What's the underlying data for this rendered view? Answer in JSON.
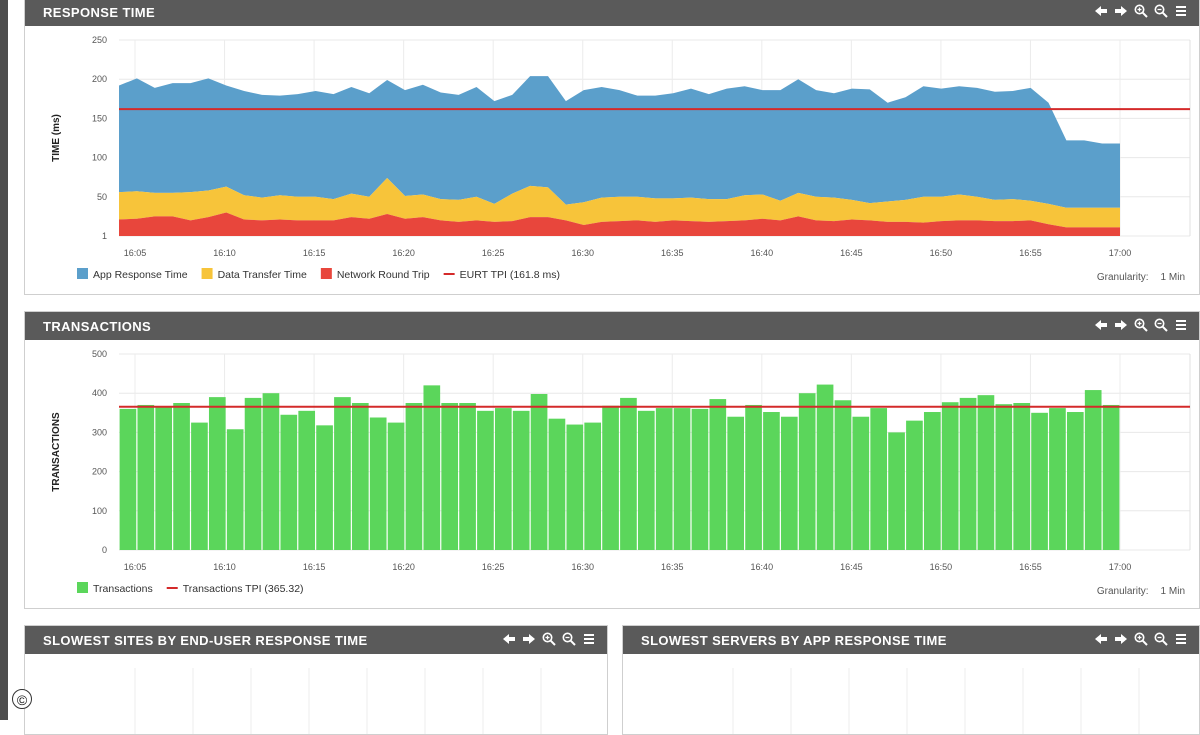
{
  "panels": {
    "response_time": {
      "title": "RESPONSE TIME"
    },
    "transactions": {
      "title": "TRANSACTIONS"
    },
    "slowest_sites": {
      "title": "SLOWEST SITES BY END-USER RESPONSE TIME"
    },
    "slowest_servers": {
      "title": "SLOWEST SERVERS BY APP RESPONSE TIME"
    }
  },
  "tool_icons": [
    "arrow-left-icon",
    "arrow-right-icon",
    "zoom-in-icon",
    "zoom-out-icon",
    "menu-icon"
  ],
  "copyright_symbol": "©",
  "chart_data": [
    {
      "type": "area",
      "stacked": true,
      "ylabel": "TIME (ms)",
      "ylim": [
        0,
        250
      ],
      "y_ticks": [
        "250",
        "200",
        "150",
        "100",
        "50",
        "1"
      ],
      "x_ticks": [
        "16:05",
        "16:10",
        "16:15",
        "16:20",
        "16:25",
        "16:30",
        "16:35",
        "16:40",
        "16:45",
        "16:50",
        "16:55",
        "17:00"
      ],
      "x": [
        "16:04",
        "16:05",
        "16:06",
        "16:07",
        "16:08",
        "16:09",
        "16:10",
        "16:11",
        "16:12",
        "16:13",
        "16:14",
        "16:15",
        "16:16",
        "16:17",
        "16:18",
        "16:19",
        "16:20",
        "16:21",
        "16:22",
        "16:23",
        "16:24",
        "16:25",
        "16:26",
        "16:27",
        "16:28",
        "16:29",
        "16:30",
        "16:31",
        "16:32",
        "16:33",
        "16:34",
        "16:35",
        "16:36",
        "16:37",
        "16:38",
        "16:39",
        "16:40",
        "16:41",
        "16:42",
        "16:43",
        "16:44",
        "16:45",
        "16:46",
        "16:47",
        "16:48",
        "16:49",
        "16:50",
        "16:51",
        "16:52",
        "16:53",
        "16:54",
        "16:55",
        "16:56",
        "16:57",
        "16:58",
        "16:59",
        "17:00"
      ],
      "series": [
        {
          "name": "App Response Time",
          "color": "#5b9fcb",
          "values": [
            136,
            144,
            134,
            140,
            139,
            143,
            129,
            133,
            131,
            127,
            131,
            135,
            134,
            136,
            132,
            125,
            135,
            140,
            136,
            134,
            140,
            131,
            126,
            140,
            142,
            132,
            143,
            141,
            136,
            129,
            131,
            134,
            139,
            134,
            141,
            139,
            133,
            141,
            145,
            136,
            133,
            142,
            145,
            126,
            131,
            141,
            138,
            138,
            139,
            138,
            138,
            144,
            129,
            86,
            86,
            82,
            82
          ]
        },
        {
          "name": "Data Transfer Time",
          "color": "#f7c43a",
          "values": [
            35,
            35,
            30,
            30,
            36,
            34,
            33,
            31,
            29,
            31,
            30,
            30,
            27,
            30,
            28,
            46,
            29,
            29,
            27,
            28,
            30,
            23,
            35,
            40,
            38,
            20,
            29,
            31,
            31,
            30,
            30,
            28,
            30,
            29,
            28,
            32,
            31,
            25,
            30,
            30,
            30,
            25,
            22,
            26,
            28,
            33,
            31,
            33,
            30,
            27,
            28,
            25,
            26,
            25,
            25,
            25,
            25
          ]
        },
        {
          "name": "Network Round Trip",
          "color": "#e8463c",
          "values": [
            21,
            22,
            25,
            25,
            20,
            24,
            30,
            21,
            20,
            21,
            20,
            20,
            20,
            24,
            22,
            28,
            22,
            24,
            20,
            18,
            20,
            18,
            19,
            24,
            24,
            20,
            14,
            18,
            19,
            20,
            18,
            20,
            19,
            18,
            19,
            20,
            22,
            20,
            25,
            20,
            19,
            21,
            20,
            18,
            18,
            17,
            19,
            20,
            20,
            19,
            19,
            20,
            15,
            11,
            11,
            11,
            11
          ]
        }
      ],
      "reference_line": {
        "name": "EURT TPI (161.8 ms)",
        "value": 161.8,
        "color": "#d42a2a"
      },
      "legend_position": "bottom-left",
      "granularity_label": "Granularity:",
      "granularity_value": "1 Min"
    },
    {
      "type": "bar",
      "ylabel": "TRANSACTIONS",
      "ylim": [
        0,
        500
      ],
      "y_ticks": [
        "500",
        "400",
        "300",
        "200",
        "100",
        "0"
      ],
      "x_ticks": [
        "16:05",
        "16:10",
        "16:15",
        "16:20",
        "16:25",
        "16:30",
        "16:35",
        "16:40",
        "16:45",
        "16:50",
        "16:55",
        "17:00"
      ],
      "series": [
        {
          "name": "Transactions",
          "color": "#5bd65b",
          "values": [
            360,
            370,
            365,
            375,
            325,
            390,
            308,
            388,
            400,
            345,
            355,
            318,
            390,
            375,
            338,
            325,
            375,
            420,
            375,
            375,
            355,
            362,
            355,
            398,
            335,
            320,
            325,
            368,
            388,
            355,
            362,
            362,
            360,
            385,
            340,
            370,
            352,
            340,
            400,
            422,
            382,
            340,
            362,
            300,
            330,
            352,
            377,
            388,
            395,
            372,
            375,
            350,
            362,
            352,
            408,
            370
          ]
        }
      ],
      "reference_line": {
        "name": "Transactions TPI (365.32)",
        "value": 365.32,
        "color": "#d42a2a"
      },
      "legend_position": "bottom-left",
      "granularity_label": "Granularity:",
      "granularity_value": "1 Min"
    }
  ]
}
